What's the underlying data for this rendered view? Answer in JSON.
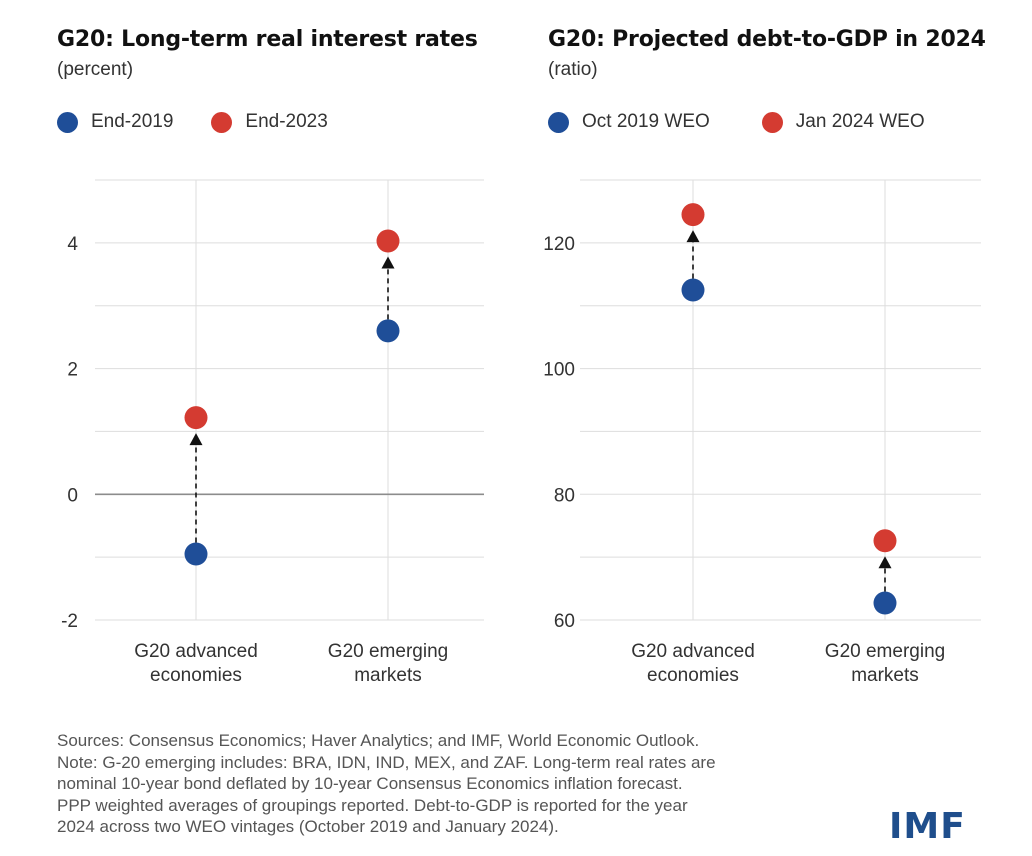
{
  "colors": {
    "series1": "#1f4e98",
    "series2": "#d43b31",
    "grid": "#dddddd",
    "zero": "#8c8c8c",
    "arrow": "#111111"
  },
  "charts": [
    {
      "title": "G20: Long-term real interest rates",
      "subtitle": "(percent)",
      "legend": [
        "End-2019",
        "End-2023"
      ]
    },
    {
      "title": "G20: Projected debt-to-GDP in 2024",
      "subtitle": "(ratio)",
      "legend": [
        "Oct 2019 WEO",
        "Jan 2024 WEO"
      ]
    }
  ],
  "chart_data": [
    {
      "type": "scatter",
      "title": "G20: Long-term real interest rates",
      "subtitle": "(percent)",
      "categories": [
        [
          "G20 advanced",
          "economies"
        ],
        [
          "G20 emerging",
          "markets"
        ]
      ],
      "series": [
        {
          "name": "End-2019",
          "values": [
            -0.95,
            2.6
          ]
        },
        {
          "name": "End-2023",
          "values": [
            1.22,
            4.03
          ]
        }
      ],
      "ylim": [
        -2,
        5
      ],
      "yticks": [
        -2,
        0,
        2,
        4
      ],
      "zero_line": true,
      "grid": true,
      "legend_position": "top-left"
    },
    {
      "type": "scatter",
      "title": "G20: Projected debt-to-GDP in 2024",
      "subtitle": "(ratio)",
      "categories": [
        [
          "G20 advanced",
          "economies"
        ],
        [
          "G20 emerging",
          "markets"
        ]
      ],
      "series": [
        {
          "name": "Oct 2019 WEO",
          "values": [
            112.5,
            62.7
          ]
        },
        {
          "name": "Jan 2024 WEO",
          "values": [
            124.5,
            72.6
          ]
        }
      ],
      "ylim": [
        60,
        130
      ],
      "yticks": [
        60,
        80,
        100,
        120
      ],
      "zero_line": false,
      "grid": true,
      "legend_position": "top-left"
    }
  ],
  "notes": [
    "Sources: Consensus Economics; Haver Analytics; and IMF, World Economic Outlook.",
    "Note: G-20 emerging includes: BRA, IDN, IND, MEX, and ZAF. Long-term real rates are",
    "nominal 10-year bond deflated by 10-year Consensus Economics inflation forecast.",
    "PPP weighted averages of groupings reported. Debt-to-GDP is reported for the year",
    "2024 across two WEO vintages (October 2019 and January 2024)."
  ],
  "logo": "IMF"
}
